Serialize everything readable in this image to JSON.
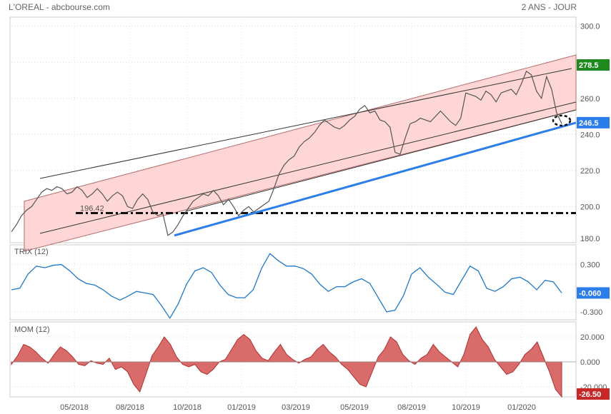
{
  "header": {
    "title": "L'OREAL - abcbourse.com",
    "period": "2 ANS - JOUR"
  },
  "colors": {
    "price_line": "#555555",
    "channel_fill": "#ffd6d6",
    "trend_support": "#2b7de9",
    "badge_last": "#1e8a1e",
    "badge_support": "#2b7de9",
    "trix_line": "#1f78c8",
    "mom_fill": "#d96b6b",
    "mom_neg_badge": "#c62828"
  },
  "chart_data": [
    {
      "type": "line",
      "panel": "price",
      "x_labels": [
        "05/2018",
        "08/2018",
        "10/2018",
        "01/2019",
        "03/2019",
        "05/2019",
        "08/2019",
        "10/2019",
        "01/2020"
      ],
      "y_ticks": [
        "300.0",
        "280.0",
        "260.0",
        "240.0",
        "220.0",
        "200.0",
        "180.0"
      ],
      "ylim": [
        180,
        305
      ],
      "grid": true,
      "series": [
        {
          "values": [
            186,
            190,
            195,
            198,
            200,
            204,
            208,
            210,
            209,
            211,
            210,
            207,
            208,
            211,
            209,
            205,
            207,
            210,
            207,
            203,
            206,
            208,
            206,
            200,
            199,
            204,
            207,
            204,
            197,
            195,
            196,
            184,
            186,
            190,
            195,
            199,
            203,
            205,
            207,
            206,
            209,
            206,
            201,
            204,
            200,
            195,
            198,
            200,
            197,
            199,
            201,
            203,
            210,
            218,
            223,
            226,
            228,
            233,
            236,
            238,
            241,
            245,
            248,
            246,
            244,
            243,
            245,
            248,
            250,
            254,
            256,
            252,
            253,
            248,
            247,
            244,
            230,
            229,
            238,
            246,
            247,
            249,
            248,
            247,
            250,
            253,
            250,
            247,
            245,
            249,
            263,
            262,
            261,
            259,
            264,
            262,
            258,
            263,
            264,
            265,
            262,
            268,
            275,
            273,
            264,
            260,
            272,
            265,
            252,
            246
          ]
        }
      ],
      "horizontal_level": {
        "label": "196.42",
        "value": 196.42
      },
      "badges": [
        {
          "label": "278.5",
          "value": 278.5
        },
        {
          "label": "246.5",
          "value": 246.5
        }
      ]
    },
    {
      "type": "line",
      "panel": "trix",
      "title": "TRIX (12)",
      "y_ticks": [
        "0.300",
        "-0.300"
      ],
      "ylim": [
        -0.4,
        0.55
      ],
      "series": [
        {
          "values": [
            -0.02,
            0.0,
            0.18,
            0.28,
            0.26,
            0.29,
            0.3,
            0.22,
            0.12,
            0.06,
            0.04,
            -0.02,
            -0.1,
            -0.15,
            -0.1,
            -0.04,
            -0.06,
            -0.08,
            -0.22,
            -0.38,
            -0.2,
            0.05,
            0.22,
            0.26,
            0.2,
            0.04,
            -0.08,
            -0.12,
            -0.12,
            -0.02,
            0.25,
            0.44,
            0.35,
            0.28,
            0.28,
            0.25,
            0.18,
            0.05,
            -0.04,
            0.02,
            0.02,
            0.08,
            0.12,
            0.06,
            -0.12,
            -0.3,
            -0.28,
            -0.1,
            0.18,
            0.26,
            0.14,
            0.05,
            -0.05,
            -0.08,
            0.1,
            0.28,
            0.22,
            0.0,
            -0.04,
            0.02,
            0.12,
            0.14,
            0.08,
            -0.02,
            0.1,
            0.08,
            -0.06
          ]
        }
      ],
      "badges": [
        {
          "label": "-0.060",
          "value": -0.06
        }
      ]
    },
    {
      "type": "area",
      "panel": "momentum",
      "title": "MOM (12)",
      "y_ticks": [
        "20.000",
        "0.000",
        "-20.000"
      ],
      "ylim": [
        -28,
        32
      ],
      "series": [
        {
          "values": [
            -2,
            5,
            14,
            12,
            8,
            3,
            -1,
            6,
            12,
            9,
            4,
            -2,
            -3,
            1,
            -1,
            -2,
            3,
            -6,
            -4,
            -8,
            -18,
            -24,
            -10,
            5,
            12,
            20,
            14,
            4,
            -2,
            -4,
            -2,
            -8,
            -10,
            -6,
            0,
            2,
            10,
            18,
            22,
            18,
            9,
            3,
            1,
            8,
            14,
            6,
            2,
            -1,
            2,
            4,
            10,
            14,
            8,
            4,
            -2,
            -6,
            -12,
            -18,
            -20,
            -8,
            4,
            10,
            20,
            16,
            6,
            1,
            -2,
            3,
            6,
            14,
            8,
            4,
            0,
            -4,
            6,
            22,
            28,
            18,
            12,
            2,
            -4,
            -10,
            -8,
            -2,
            6,
            10,
            16,
            4,
            -8,
            -22,
            -28
          ]
        }
      ],
      "badges": [
        {
          "label": "-26.50",
          "value": -26.5
        }
      ]
    }
  ]
}
